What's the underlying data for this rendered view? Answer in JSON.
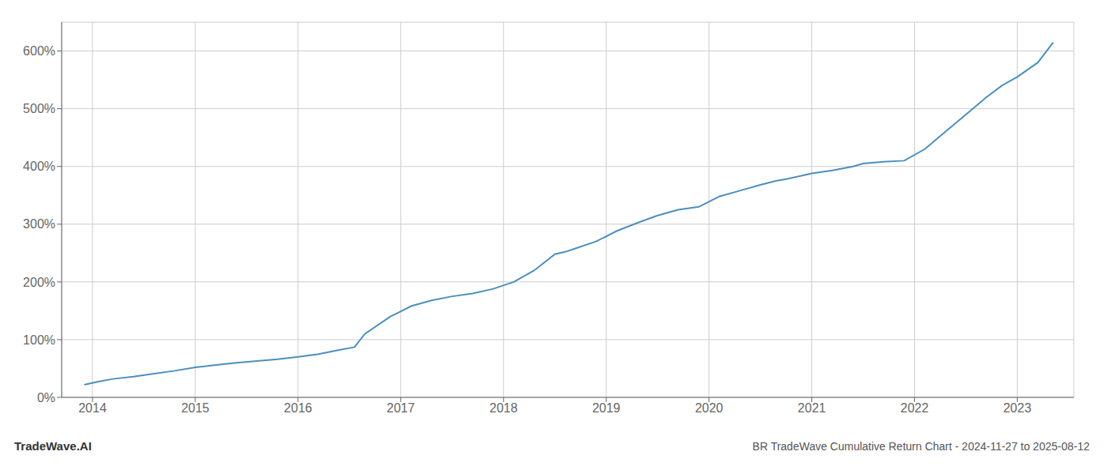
{
  "chart_data": {
    "type": "line",
    "title": "BR TradeWave Cumulative Return Chart - 2024-11-27 to 2025-08-12",
    "annotations": [
      "TradeWave.AI"
    ],
    "color": "#4a8fc0",
    "grid": true,
    "x": [
      2013.92,
      2014.05,
      2014.2,
      2014.4,
      2014.6,
      2014.8,
      2015.0,
      2015.2,
      2015.4,
      2015.6,
      2015.8,
      2016.0,
      2016.2,
      2016.4,
      2016.55,
      2016.65,
      2016.9,
      2017.1,
      2017.3,
      2017.5,
      2017.7,
      2017.9,
      2018.1,
      2018.3,
      2018.5,
      2018.6,
      2018.7,
      2018.9,
      2019.1,
      2019.3,
      2019.5,
      2019.7,
      2019.9,
      2020.1,
      2020.3,
      2020.5,
      2020.65,
      2020.75,
      2021.0,
      2021.2,
      2021.4,
      2021.5,
      2021.7,
      2021.9,
      2022.1,
      2022.3,
      2022.5,
      2022.7,
      2022.85,
      2023.0,
      2023.2,
      2023.35
    ],
    "values": [
      22,
      27,
      32,
      36,
      41,
      46,
      52,
      56,
      60,
      63,
      66,
      70,
      75,
      82,
      87,
      110,
      140,
      158,
      168,
      175,
      180,
      188,
      200,
      220,
      248,
      252,
      258,
      270,
      288,
      302,
      315,
      325,
      330,
      348,
      358,
      368,
      375,
      378,
      388,
      393,
      400,
      405,
      408,
      410,
      430,
      460,
      490,
      520,
      540,
      555,
      580,
      615
    ],
    "xlim": [
      2013.7,
      2023.55
    ],
    "xticks": [
      2014,
      2015,
      2016,
      2017,
      2018,
      2019,
      2020,
      2021,
      2022,
      2023
    ],
    "ylim": [
      0,
      650
    ],
    "yticks": [
      {
        "value": 0,
        "label": "0%"
      },
      {
        "value": 100,
        "label": "100%"
      },
      {
        "value": 200,
        "label": "200%"
      },
      {
        "value": 300,
        "label": "300%"
      },
      {
        "value": 400,
        "label": "400%"
      },
      {
        "value": 500,
        "label": "500%"
      },
      {
        "value": 600,
        "label": "600%"
      }
    ]
  }
}
